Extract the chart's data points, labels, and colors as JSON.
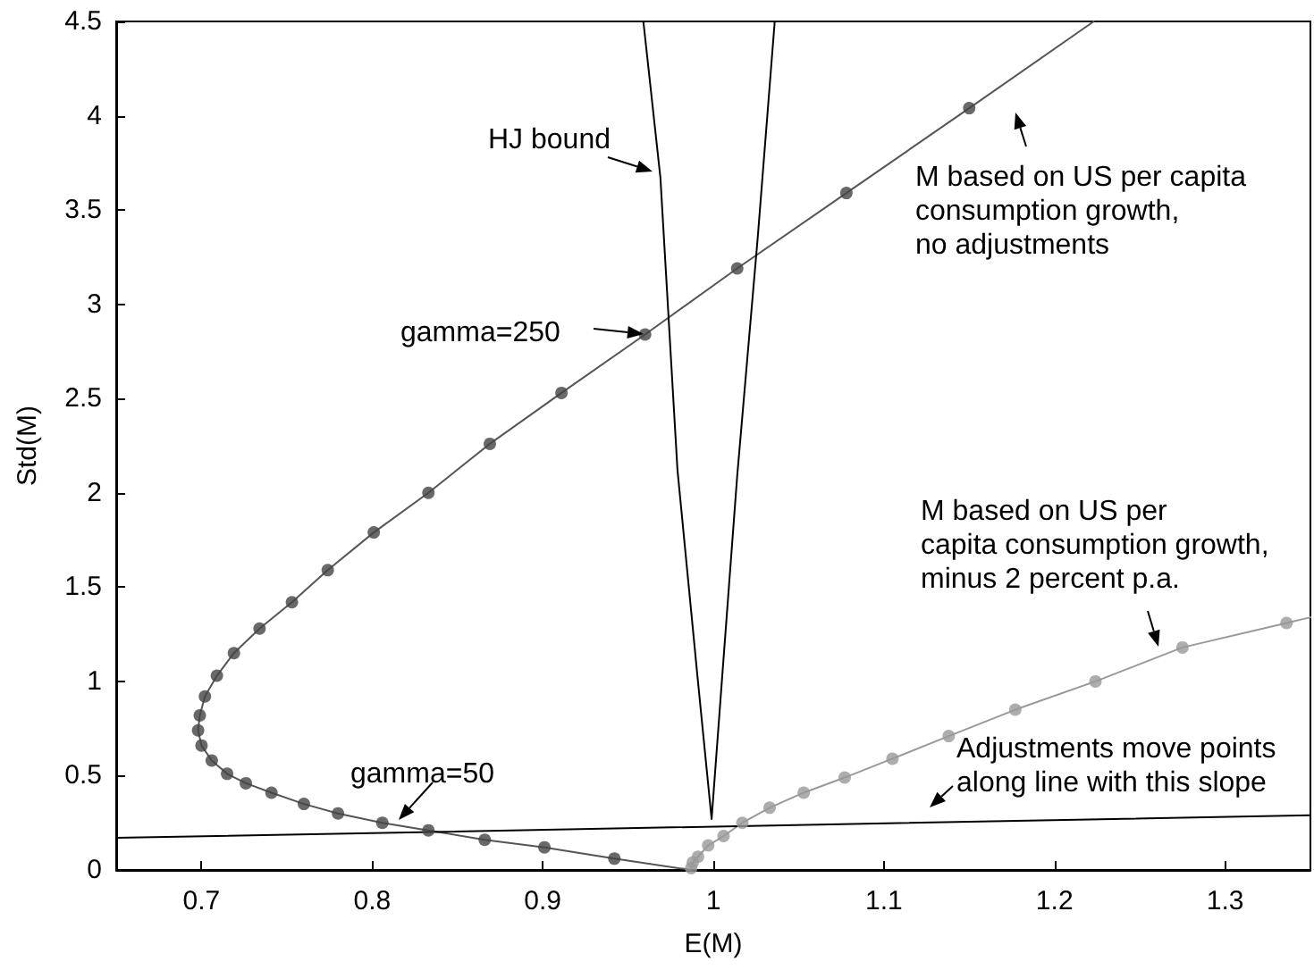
{
  "chart_data": {
    "type": "line",
    "xlabel": "E(M)",
    "ylabel": "Std(M)",
    "xlim": [
      0.65,
      1.35
    ],
    "ylim": [
      0,
      4.5
    ],
    "xticks": [
      0.7,
      0.8,
      0.9,
      1,
      1.1,
      1.2,
      1.3
    ],
    "yticks": [
      0,
      0.5,
      1,
      1.5,
      2,
      2.5,
      3,
      3.5,
      4,
      4.5
    ],
    "grid": false,
    "line_style": "solid",
    "series": [
      {
        "marker": "none",
        "color": "#555555",
        "x": [
          0.987,
          0.942,
          0.901,
          0.866,
          0.833,
          0.806,
          0.78,
          0.76,
          0.741,
          0.726,
          0.715,
          0.706,
          0.7,
          0.698,
          0.699,
          0.702,
          0.709,
          0.719,
          0.734,
          0.753,
          0.774,
          0.801,
          0.833,
          0.869,
          0.911,
          0.96,
          1.014,
          1.078,
          1.15,
          1.223
        ],
        "values": [
          0,
          0.06,
          0.12,
          0.16,
          0.21,
          0.25,
          0.3,
          0.35,
          0.41,
          0.46,
          0.51,
          0.58,
          0.66,
          0.74,
          0.82,
          0.92,
          1.03,
          1.15,
          1.28,
          1.42,
          1.59,
          1.79,
          2.0,
          2.26,
          2.53,
          2.84,
          3.19,
          3.59,
          4.04,
          4.5
        ]
      },
      {
        "type": "scatter",
        "marker": "circle",
        "color": "#444444",
        "x": [
          0.942,
          0.901,
          0.866,
          0.833,
          0.806,
          0.78,
          0.76,
          0.741,
          0.726,
          0.715,
          0.706,
          0.7,
          0.698,
          0.699,
          0.702,
          0.709,
          0.719,
          0.734,
          0.753,
          0.774,
          0.801,
          0.833,
          0.869,
          0.911,
          0.96,
          1.014,
          1.078,
          1.15
        ],
        "values": [
          0.06,
          0.12,
          0.16,
          0.21,
          0.25,
          0.3,
          0.35,
          0.41,
          0.46,
          0.51,
          0.58,
          0.66,
          0.74,
          0.82,
          0.92,
          1.03,
          1.15,
          1.28,
          1.42,
          1.59,
          1.79,
          2.0,
          2.26,
          2.53,
          2.84,
          3.19,
          3.59,
          4.04
        ]
      },
      {
        "marker": "none",
        "color": "#999999",
        "x": [
          0.987,
          0.988,
          0.991,
          0.997,
          1.006,
          1.017,
          1.033,
          1.053,
          1.077,
          1.105,
          1.138,
          1.177,
          1.224,
          1.275,
          1.336,
          1.35
        ],
        "values": [
          0.01,
          0.04,
          0.07,
          0.13,
          0.18,
          0.25,
          0.33,
          0.41,
          0.49,
          0.59,
          0.71,
          0.85,
          1.0,
          1.18,
          1.31,
          1.34
        ]
      },
      {
        "type": "scatter",
        "marker": "circle",
        "color": "#999999",
        "x": [
          0.987,
          0.988,
          0.991,
          0.997,
          1.006,
          1.017,
          1.033,
          1.053,
          1.077,
          1.105,
          1.138,
          1.177,
          1.224,
          1.275,
          1.336
        ],
        "values": [
          0.01,
          0.04,
          0.07,
          0.13,
          0.18,
          0.25,
          0.33,
          0.41,
          0.49,
          0.59,
          0.71,
          0.85,
          1.0,
          1.18,
          1.31
        ]
      },
      {
        "marker": "none",
        "color": "#000000",
        "x": [
          0.959,
          0.969,
          0.979,
          0.991,
          0.999,
          1.005,
          1.014,
          1.026,
          1.036
        ],
        "values": [
          4.5,
          3.67,
          2.12,
          1.0,
          0.27,
          1.0,
          2.09,
          3.35,
          4.5
        ]
      },
      {
        "marker": "none",
        "color": "#000000",
        "x": [
          0.65,
          1.35
        ],
        "values": [
          0.17,
          0.29
        ]
      }
    ],
    "annotations": [
      "HJ bound",
      "gamma=250",
      "gamma=50",
      "M based on US per capita\nconsumption growth,\nno adjustments",
      "M based on US per\ncapita consumption growth,\nminus 2 percent p.a.",
      "Adjustments move points\nalong line with this slope"
    ]
  }
}
